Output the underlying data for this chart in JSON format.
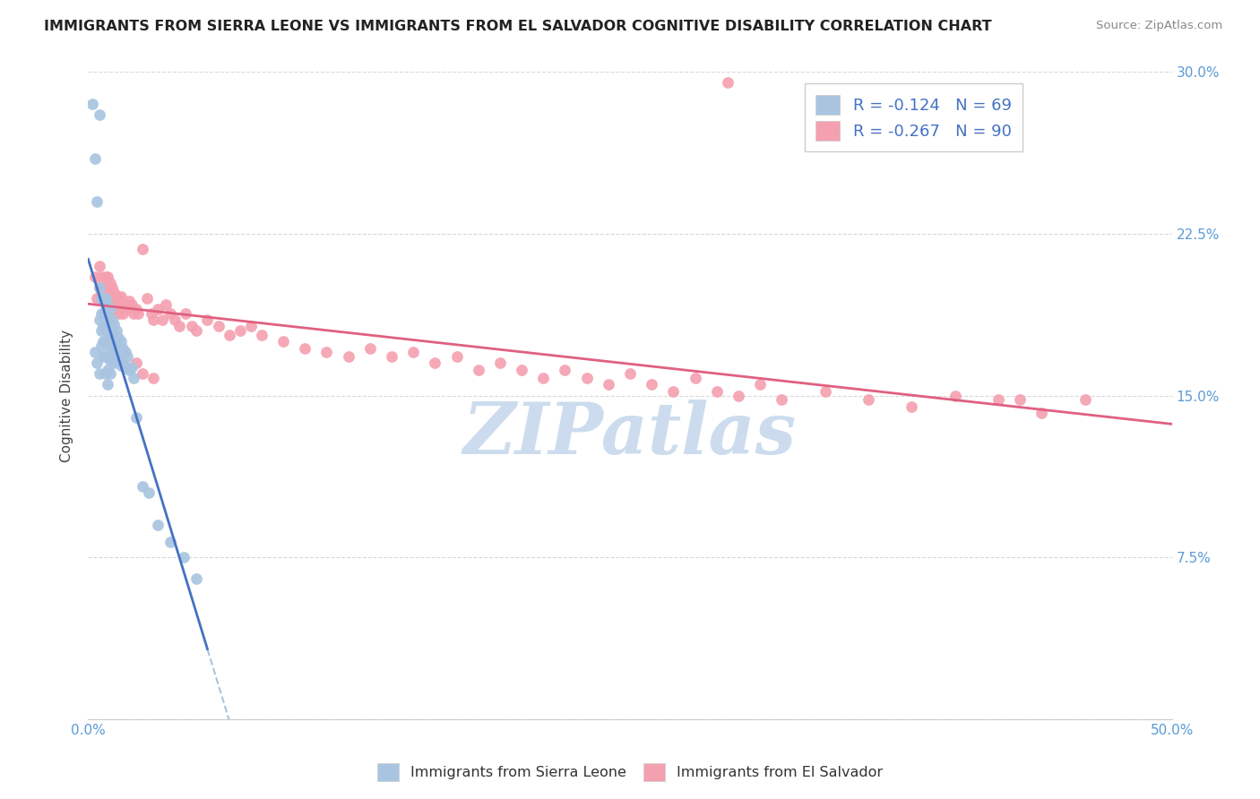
{
  "title": "IMMIGRANTS FROM SIERRA LEONE VS IMMIGRANTS FROM EL SALVADOR COGNITIVE DISABILITY CORRELATION CHART",
  "source": "Source: ZipAtlas.com",
  "ylabel": "Cognitive Disability",
  "xlim": [
    0.0,
    0.5
  ],
  "ylim": [
    0.0,
    0.3
  ],
  "sierra_leone_color": "#a8c4e0",
  "el_salvador_color": "#f4a0b0",
  "sierra_leone_line_color": "#4472c4",
  "el_salvador_line_color": "#e06080",
  "dashed_line_color": "#a8c4e0",
  "watermark": "ZIPatlas",
  "watermark_color": "#ccdcee",
  "background_color": "#ffffff",
  "grid_color": "#d8d8d8",
  "sierra_leone_x": [
    0.002,
    0.003,
    0.003,
    0.004,
    0.004,
    0.005,
    0.005,
    0.005,
    0.005,
    0.006,
    0.006,
    0.006,
    0.006,
    0.007,
    0.007,
    0.007,
    0.007,
    0.007,
    0.008,
    0.008,
    0.008,
    0.008,
    0.008,
    0.008,
    0.009,
    0.009,
    0.009,
    0.009,
    0.009,
    0.009,
    0.009,
    0.01,
    0.01,
    0.01,
    0.01,
    0.01,
    0.01,
    0.011,
    0.011,
    0.011,
    0.011,
    0.012,
    0.012,
    0.012,
    0.012,
    0.013,
    0.013,
    0.013,
    0.014,
    0.014,
    0.014,
    0.015,
    0.015,
    0.015,
    0.016,
    0.016,
    0.017,
    0.017,
    0.018,
    0.019,
    0.02,
    0.021,
    0.022,
    0.025,
    0.028,
    0.032,
    0.038,
    0.044,
    0.05
  ],
  "sierra_leone_y": [
    0.285,
    0.26,
    0.17,
    0.24,
    0.165,
    0.28,
    0.2,
    0.185,
    0.16,
    0.195,
    0.188,
    0.18,
    0.173,
    0.195,
    0.188,
    0.182,
    0.175,
    0.168,
    0.195,
    0.188,
    0.182,
    0.175,
    0.168,
    0.16,
    0.192,
    0.186,
    0.18,
    0.175,
    0.168,
    0.162,
    0.155,
    0.19,
    0.184,
    0.178,
    0.172,
    0.166,
    0.16,
    0.185,
    0.18,
    0.174,
    0.168,
    0.183,
    0.177,
    0.171,
    0.165,
    0.18,
    0.174,
    0.168,
    0.177,
    0.172,
    0.166,
    0.175,
    0.17,
    0.164,
    0.172,
    0.166,
    0.17,
    0.163,
    0.168,
    0.162,
    0.163,
    0.158,
    0.14,
    0.108,
    0.105,
    0.09,
    0.082,
    0.075,
    0.065
  ],
  "el_salvador_x": [
    0.003,
    0.004,
    0.005,
    0.005,
    0.006,
    0.006,
    0.007,
    0.007,
    0.008,
    0.008,
    0.008,
    0.009,
    0.009,
    0.01,
    0.01,
    0.01,
    0.011,
    0.011,
    0.012,
    0.012,
    0.013,
    0.013,
    0.014,
    0.014,
    0.015,
    0.015,
    0.016,
    0.016,
    0.017,
    0.018,
    0.019,
    0.02,
    0.021,
    0.022,
    0.023,
    0.025,
    0.027,
    0.029,
    0.03,
    0.032,
    0.034,
    0.036,
    0.038,
    0.04,
    0.042,
    0.045,
    0.048,
    0.05,
    0.055,
    0.06,
    0.065,
    0.07,
    0.075,
    0.08,
    0.09,
    0.1,
    0.11,
    0.12,
    0.13,
    0.14,
    0.15,
    0.16,
    0.17,
    0.18,
    0.19,
    0.2,
    0.21,
    0.22,
    0.23,
    0.24,
    0.25,
    0.26,
    0.27,
    0.28,
    0.29,
    0.3,
    0.31,
    0.32,
    0.34,
    0.36,
    0.38,
    0.4,
    0.42,
    0.44,
    0.46,
    0.43,
    0.022,
    0.025,
    0.03,
    0.295
  ],
  "el_salvador_y": [
    0.205,
    0.195,
    0.21,
    0.2,
    0.205,
    0.198,
    0.2,
    0.195,
    0.205,
    0.198,
    0.192,
    0.205,
    0.198,
    0.202,
    0.196,
    0.19,
    0.2,
    0.193,
    0.198,
    0.192,
    0.196,
    0.19,
    0.194,
    0.188,
    0.196,
    0.19,
    0.194,
    0.188,
    0.192,
    0.19,
    0.194,
    0.192,
    0.188,
    0.19,
    0.188,
    0.218,
    0.195,
    0.188,
    0.185,
    0.19,
    0.185,
    0.192,
    0.188,
    0.185,
    0.182,
    0.188,
    0.182,
    0.18,
    0.185,
    0.182,
    0.178,
    0.18,
    0.182,
    0.178,
    0.175,
    0.172,
    0.17,
    0.168,
    0.172,
    0.168,
    0.17,
    0.165,
    0.168,
    0.162,
    0.165,
    0.162,
    0.158,
    0.162,
    0.158,
    0.155,
    0.16,
    0.155,
    0.152,
    0.158,
    0.152,
    0.15,
    0.155,
    0.148,
    0.152,
    0.148,
    0.145,
    0.15,
    0.148,
    0.142,
    0.148,
    0.148,
    0.165,
    0.16,
    0.158,
    0.295
  ]
}
